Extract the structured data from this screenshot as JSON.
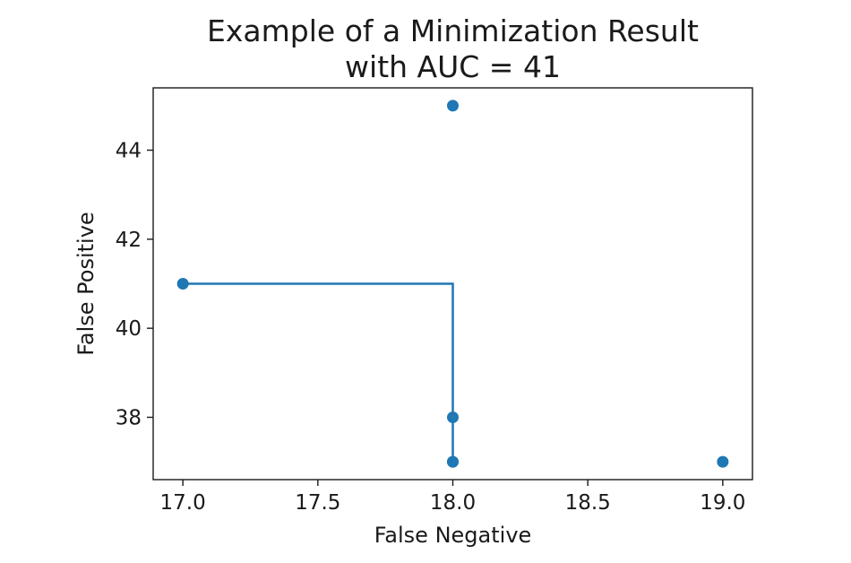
{
  "chart_data": {
    "type": "scatter",
    "title": "Example of a Minimization Result\nwith AUC = 41",
    "xlabel": "False Negative",
    "ylabel": "False Positive",
    "xlim": [
      16.89,
      19.11
    ],
    "ylim": [
      36.6,
      45.4
    ],
    "xticks": [
      17.0,
      17.5,
      18.0,
      18.5,
      19.0
    ],
    "xtick_labels": [
      "17.0",
      "17.5",
      "18.0",
      "18.5",
      "19.0"
    ],
    "yticks": [
      38,
      40,
      42,
      44
    ],
    "ytick_labels": [
      "38",
      "40",
      "42",
      "44"
    ],
    "grid": false,
    "colors": {
      "series": "#1f77b4",
      "axis": "#1a1a1a"
    },
    "series": [
      {
        "name": "points",
        "kind": "scatter",
        "x": [
          17,
          18,
          18,
          18,
          18,
          19
        ],
        "y": [
          41,
          45,
          38,
          37,
          37,
          37
        ]
      },
      {
        "name": "pareto-front",
        "kind": "step-line",
        "x": [
          17,
          18,
          18,
          18
        ],
        "y": [
          41,
          41,
          38,
          37
        ]
      }
    ]
  }
}
